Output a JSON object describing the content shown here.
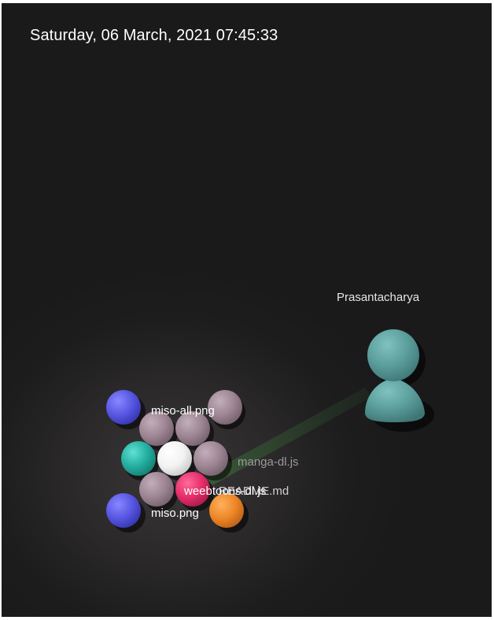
{
  "datetime": "Saturday, 06 March, 2021 07:45:33",
  "user": {
    "name": "Prasantacharya",
    "color": "#5a9d9b"
  },
  "files": [
    {
      "name": "miso-all.png",
      "color": "#5a59e6",
      "labeled": true
    },
    {
      "name": "manga-dl.js",
      "color": "#9d8592",
      "labeled": true
    },
    {
      "name": "README.md",
      "color": "#e05a7e",
      "labeled": true
    },
    {
      "name": "weebtoons-dl.js",
      "color": "#f08a2a",
      "labeled": true
    },
    {
      "name": "miso.png",
      "color": "#5a59e6",
      "labeled": true
    }
  ],
  "colors": {
    "background": "#1d1d1e",
    "beam": "#2f5a2f",
    "node_default": "#9d8592",
    "node_center": "#ffffff",
    "node_teal": "#2bb5a8",
    "node_pink": "#e8326e",
    "node_blue": "#5a59e6",
    "node_orange": "#f08a2a"
  }
}
